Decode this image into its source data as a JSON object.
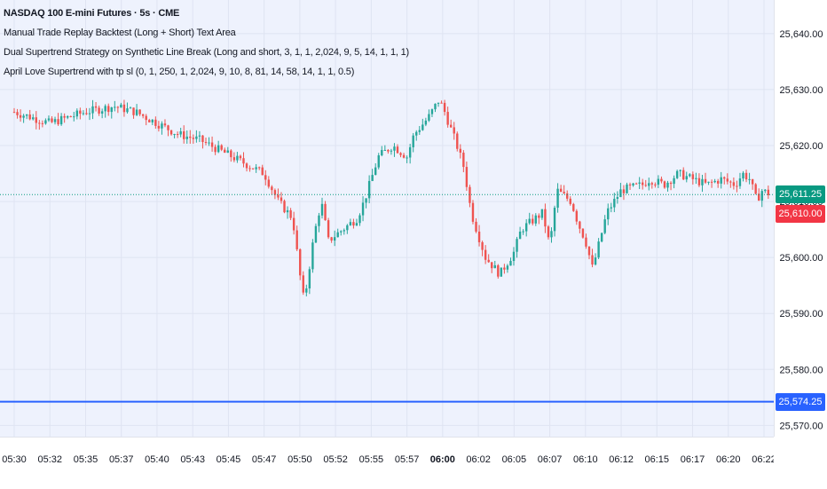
{
  "legend": {
    "title": "NASDAQ 100 E-mini Futures · 5s · CME",
    "line1": "Manual Trade Replay Backtest (Long + Short) Text Area",
    "line2": "Dual Supertrend Strategy on Synthetic Line Break (Long and short, 3, 1, 1, 2,024, 9, 5, 14, 1, 1, 1)",
    "line3": "April Love Supertrend with tp sl (0, 1, 250, 1, 2,024, 9, 10, 8, 81, 14, 58, 14, 1, 1, 0.5)"
  },
  "colors": {
    "up": "#26a69a",
    "down": "#ef5350",
    "last_price_tag": "#089981",
    "current_tag": "#f23645",
    "level_line": "#2962ff",
    "background": "#eef2fd"
  },
  "price_tags": {
    "last": "25,611.25",
    "current": "25,610.00",
    "level": "25,574.25"
  },
  "chart_data": {
    "type": "line",
    "title": "NASDAQ 100 E-mini Futures · 5s · CME",
    "ylim": [
      25568,
      25646
    ],
    "y_ticks": [
      25640,
      25630,
      25620,
      25610,
      25600,
      25590,
      25580,
      25570
    ],
    "y_tick_labels": [
      "25,640.00",
      "25,630.00",
      "25,620.00",
      "25,610.00",
      "25,600.00",
      "25,590.00",
      "25,580.00",
      "25,570.00"
    ],
    "x_tick_labels": [
      "05:30",
      "05:32",
      "05:35",
      "05:37",
      "05:40",
      "05:43",
      "05:45",
      "05:47",
      "05:50",
      "05:52",
      "05:55",
      "05:57",
      "06:00",
      "06:02",
      "06:05",
      "06:07",
      "06:10",
      "06:12",
      "06:15",
      "06:17",
      "06:20",
      "06:22"
    ],
    "x_tick_minutes": [
      0,
      2.5,
      5,
      7.5,
      10,
      12.5,
      15,
      17.5,
      20,
      22.5,
      25,
      27.5,
      30,
      32.5,
      35,
      37.5,
      40,
      42.5,
      45,
      47.5,
      50,
      52.5
    ],
    "bold_x_ticks": [
      "06:00"
    ],
    "horizontal_level": 25574.25,
    "last_price": 25611.25,
    "series": [
      {
        "x": [
          0,
          2.5,
          5,
          7,
          8.5,
          10,
          11.5,
          13,
          14.5,
          16,
          17.5,
          18.5,
          19.5,
          20,
          20.3,
          21,
          21.5,
          22,
          23,
          24,
          24.5,
          25,
          25.5,
          26.5,
          27.5,
          28,
          29,
          29.7,
          30,
          31,
          31.5,
          32,
          32.5,
          33,
          34,
          35,
          35.5,
          36,
          37,
          37.5,
          38,
          39,
          39.5,
          40,
          40.5,
          41,
          41.5,
          42.5,
          44,
          44.5,
          45.5,
          46.5,
          47.5,
          48.5,
          49.5,
          50.5,
          51,
          51.5,
          52,
          52.3,
          53
        ],
        "y": [
          25626,
          25624,
          25626,
          25627,
          25626,
          25624,
          25622,
          25621,
          25619,
          25617,
          25615,
          25610,
          25607,
          25597,
          25592,
          25604,
          25610,
          25603,
          25605,
          25607,
          25610,
          25614,
          25618,
          25620,
          25618,
          25622,
          25625,
          25628,
          25627,
          25620,
          25616,
          25608,
          25604,
          25600,
          25597,
          25601,
          25605,
          25606,
          25608,
          25602,
          25612,
          25610,
          25606,
          25603,
          25598,
          25603,
          25608,
          25612,
          25613,
          25614,
          25613,
          25615,
          25614,
          25613,
          25614,
          25613,
          25615,
          25614,
          25610,
          25612,
          25611.25
        ]
      }
    ]
  }
}
